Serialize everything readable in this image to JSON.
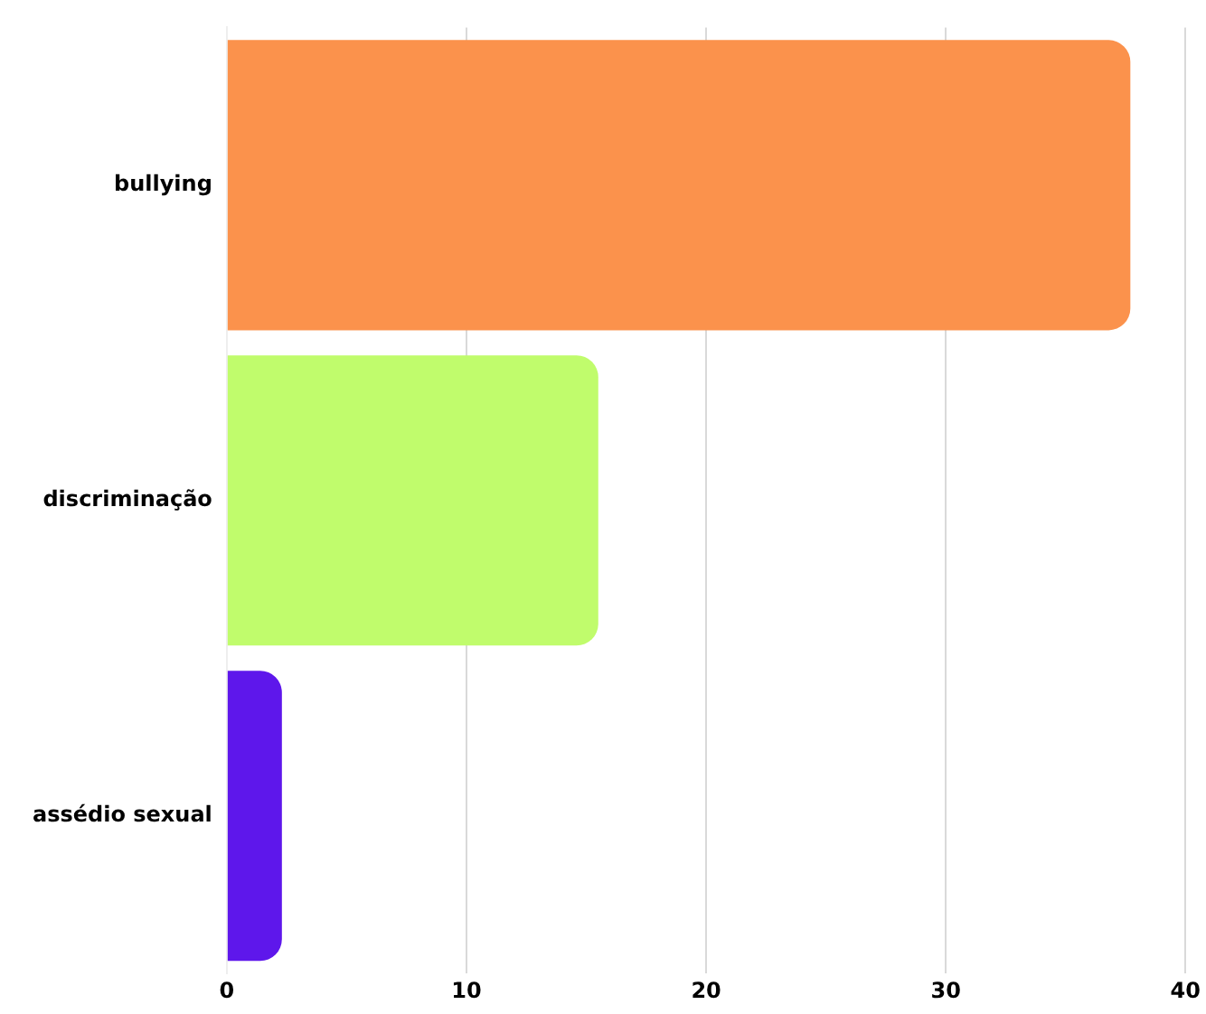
{
  "chart_data": {
    "type": "bar",
    "orientation": "horizontal",
    "categories": [
      "bullying",
      "discriminação",
      "assédio sexual"
    ],
    "values": [
      37.7,
      15.5,
      2.3
    ],
    "colors": [
      "#fb924c",
      "#c0fc6c",
      "#5e17eb"
    ],
    "xlim": [
      0,
      40
    ],
    "xticks": [
      0,
      10,
      20,
      30,
      40
    ],
    "grid": "x",
    "legend": false
  }
}
